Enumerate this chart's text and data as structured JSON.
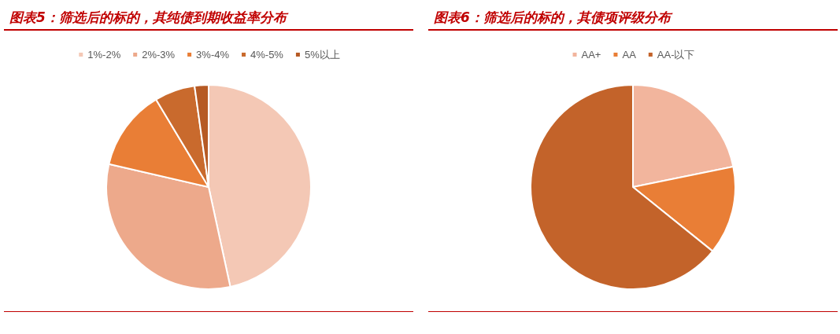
{
  "chart_data": [
    {
      "type": "pie",
      "title": "图表5：筛选后的标的，其纯债到期收益率分布",
      "categories": [
        "1%-2%",
        "2%-3%",
        "3%-4%",
        "4%-5%",
        "5%以上"
      ],
      "values": [
        46.6,
        32.0,
        12.8,
        6.4,
        2.2
      ],
      "colors": [
        "#f4c8b5",
        "#eda98b",
        "#e97e36",
        "#c96a2d",
        "#b65a24"
      ],
      "legend": "top"
    },
    {
      "type": "pie",
      "title": "图表6：筛选后的标的，其债项评级分布",
      "categories": [
        "AA+",
        "AA",
        "AA-以下"
      ],
      "values": [
        21.8,
        14.0,
        64.2
      ],
      "colors": [
        "#f2b59d",
        "#e97e36",
        "#c3632a"
      ],
      "legend": "top"
    }
  ]
}
